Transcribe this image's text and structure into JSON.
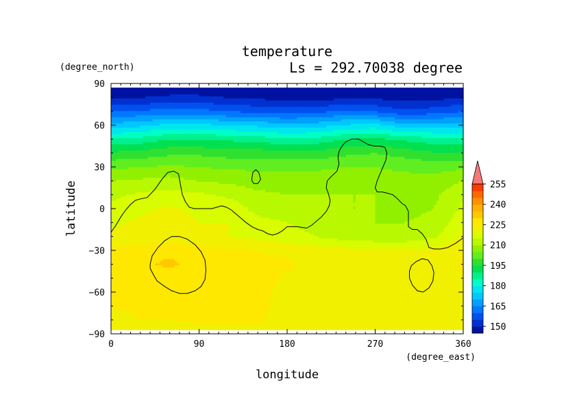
{
  "chart_data": {
    "type": "heatmap",
    "title": "temperature",
    "subtitle": "Ls = 292.70038 degree",
    "xlabel": "longitude",
    "ylabel": "latitude",
    "x_unit": "(degree_east)",
    "y_unit": "(degree_north)",
    "xlim": [
      0,
      360
    ],
    "ylim": [
      -90,
      90
    ],
    "x_ticks": [
      0,
      90,
      180,
      270,
      360
    ],
    "y_ticks": [
      90,
      60,
      30,
      0,
      -30,
      -60,
      -90
    ],
    "x_tick_labels": [
      "0",
      "90",
      "180",
      "270",
      "360"
    ],
    "y_tick_labels": [
      "90",
      "60",
      "30",
      "0",
      "−30",
      "−60",
      "−90"
    ],
    "colorbar": {
      "labels": [
        "150",
        "165",
        "180",
        "195",
        "210",
        "225",
        "240",
        "255"
      ],
      "values": [
        150,
        165,
        180,
        195,
        210,
        225,
        240,
        255
      ],
      "levels": [
        145,
        150,
        155,
        160,
        165,
        170,
        175,
        180,
        185,
        190,
        195,
        200,
        205,
        210,
        215,
        220,
        225,
        230,
        235,
        240,
        245,
        250,
        255,
        260
      ],
      "colors": [
        "#0012a0",
        "#0030d0",
        "#0050f0",
        "#0078ff",
        "#00a0ff",
        "#00c8ff",
        "#00e6f0",
        "#00ffc8",
        "#00f090",
        "#00e050",
        "#30e030",
        "#60ee20",
        "#90f000",
        "#b8f800",
        "#d8fc00",
        "#f0f000",
        "#ffe800",
        "#ffc800",
        "#ffb000",
        "#ff9000",
        "#ff6800",
        "#ff3c00",
        "#ff0000",
        "#f87878"
      ]
    },
    "fields": {
      "longitudes": [
        0,
        30,
        60,
        90,
        120,
        150,
        180,
        210,
        240,
        270,
        300,
        330,
        360
      ],
      "latitudes": [
        -87,
        -80,
        -70,
        -60,
        -50,
        -40,
        -30,
        -20,
        -10,
        0,
        10,
        20,
        30,
        40,
        50,
        60,
        70,
        80,
        87
      ],
      "temperature": [
        [
          222,
          223,
          223,
          223,
          223,
          223,
          222,
          222,
          221,
          221,
          221,
          221,
          222
        ],
        [
          223,
          225,
          225,
          226,
          226,
          226,
          222,
          222,
          221,
          221,
          221,
          221,
          223
        ],
        [
          225,
          226,
          227,
          227,
          227,
          227,
          222,
          222,
          221,
          221,
          221,
          221,
          225
        ],
        [
          225,
          226,
          227,
          227,
          227,
          227,
          223,
          221,
          221,
          221,
          221,
          221,
          225
        ],
        [
          225,
          226,
          227,
          227,
          227,
          227,
          224,
          221,
          221,
          221,
          221,
          221,
          225
        ],
        [
          226,
          229,
          231,
          228,
          227,
          226,
          226,
          223,
          221,
          221,
          221,
          221,
          226
        ],
        [
          225,
          228,
          229,
          227,
          226,
          225,
          224,
          223,
          222,
          221,
          221,
          222,
          225
        ],
        [
          221,
          222,
          222,
          222,
          220,
          219,
          217,
          215,
          213,
          212,
          212,
          214,
          221
        ],
        [
          219,
          221,
          222,
          220,
          220,
          217,
          215,
          213,
          211,
          210,
          210,
          211,
          219
        ],
        [
          216,
          219,
          221,
          219,
          219,
          213,
          212,
          211,
          210,
          210,
          209,
          210,
          216
        ],
        [
          214,
          216,
          217,
          216,
          214,
          211,
          210,
          210,
          210,
          210,
          209,
          209,
          214
        ],
        [
          210,
          211,
          212,
          210,
          209,
          208,
          208,
          208,
          208,
          207,
          207,
          207,
          210
        ],
        [
          204,
          205,
          206,
          205,
          204,
          204,
          204,
          204,
          205,
          205,
          204,
          203,
          204
        ],
        [
          196,
          197,
          199,
          199,
          198,
          198,
          197,
          197,
          199,
          200,
          198,
          196,
          196
        ],
        [
          186,
          187,
          190,
          190,
          189,
          188,
          186,
          187,
          190,
          191,
          189,
          187,
          186
        ],
        [
          172,
          174,
          177,
          177,
          175,
          174,
          172,
          173,
          176,
          177,
          172,
          172,
          172
        ],
        [
          160,
          161,
          162,
          162,
          160,
          159,
          158,
          159,
          161,
          160,
          156,
          158,
          160
        ],
        [
          150,
          150,
          151,
          151,
          150,
          149,
          148,
          148,
          149,
          149,
          148,
          148,
          150
        ],
        [
          146,
          146,
          147,
          147,
          146,
          146,
          145,
          145,
          146,
          146,
          145,
          145,
          146
        ]
      ]
    },
    "contours": [
      {
        "name": "main",
        "points": [
          [
            0,
            -17
          ],
          [
            5,
            -12
          ],
          [
            10,
            -6
          ],
          [
            15,
            -1
          ],
          [
            20,
            3
          ],
          [
            25,
            6
          ],
          [
            30,
            7
          ],
          [
            37,
            8
          ],
          [
            45,
            14
          ],
          [
            52,
            21
          ],
          [
            58,
            26
          ],
          [
            64,
            27
          ],
          [
            69,
            25
          ],
          [
            71,
            17
          ],
          [
            73,
            10
          ],
          [
            76,
            5
          ],
          [
            80,
            1
          ],
          [
            85,
            0
          ],
          [
            95,
            0
          ],
          [
            103,
            0
          ],
          [
            108,
            1
          ],
          [
            113,
            2
          ],
          [
            118,
            1
          ],
          [
            123,
            -1
          ],
          [
            128,
            -4
          ],
          [
            133,
            -7
          ],
          [
            138,
            -10
          ],
          [
            144,
            -13
          ],
          [
            150,
            -15
          ],
          [
            155,
            -16
          ],
          [
            160,
            -18
          ],
          [
            165,
            -19
          ],
          [
            170,
            -18
          ],
          [
            175,
            -16
          ],
          [
            180,
            -13
          ],
          [
            190,
            -13
          ],
          [
            200,
            -14
          ],
          [
            205,
            -12
          ],
          [
            210,
            -9
          ],
          [
            215,
            -6
          ],
          [
            220,
            -2
          ],
          [
            223,
            2
          ],
          [
            224,
            6
          ],
          [
            222,
            11
          ],
          [
            220,
            15
          ],
          [
            221,
            20
          ],
          [
            225,
            23
          ],
          [
            231,
            27
          ],
          [
            233,
            32
          ],
          [
            232,
            37
          ],
          [
            233,
            41
          ],
          [
            236,
            45
          ],
          [
            240,
            48
          ],
          [
            246,
            50
          ],
          [
            253,
            50
          ],
          [
            258,
            48
          ],
          [
            263,
            46
          ],
          [
            269,
            45
          ],
          [
            275,
            45
          ],
          [
            280,
            44
          ],
          [
            282,
            40
          ],
          [
            281,
            35
          ],
          [
            278,
            30
          ],
          [
            275,
            25
          ],
          [
            272,
            20
          ],
          [
            270,
            15
          ],
          [
            272,
            12
          ],
          [
            277,
            12
          ],
          [
            283,
            11
          ],
          [
            288,
            10
          ],
          [
            293,
            7
          ],
          [
            297,
            4
          ],
          [
            301,
            2
          ],
          [
            304,
            -2
          ],
          [
            304,
            -8
          ],
          [
            304,
            -13
          ],
          [
            308,
            -15
          ],
          [
            313,
            -15
          ],
          [
            318,
            -18
          ],
          [
            322,
            -22
          ],
          [
            325,
            -28
          ],
          [
            330,
            -29
          ],
          [
            337,
            -29
          ],
          [
            344,
            -28
          ],
          [
            352,
            -25
          ],
          [
            360,
            -21
          ]
        ]
      },
      {
        "name": "island-30N",
        "points": [
          [
            144,
            22
          ],
          [
            145,
            26
          ],
          [
            148,
            28
          ],
          [
            151,
            26
          ],
          [
            153,
            21
          ],
          [
            150,
            18
          ],
          [
            146,
            18
          ],
          [
            144,
            20
          ],
          [
            144,
            22
          ]
        ]
      },
      {
        "name": "warm-SW",
        "points": [
          [
            40,
            -40
          ],
          [
            42,
            -34
          ],
          [
            48,
            -28
          ],
          [
            55,
            -23
          ],
          [
            62,
            -20
          ],
          [
            70,
            -20
          ],
          [
            78,
            -22
          ],
          [
            86,
            -26
          ],
          [
            92,
            -31
          ],
          [
            96,
            -37
          ],
          [
            97,
            -44
          ],
          [
            96,
            -51
          ],
          [
            92,
            -56
          ],
          [
            86,
            -59
          ],
          [
            78,
            -61
          ],
          [
            70,
            -61
          ],
          [
            62,
            -59
          ],
          [
            55,
            -56
          ],
          [
            47,
            -52
          ],
          [
            43,
            -47
          ],
          [
            40,
            -43
          ],
          [
            40,
            -40
          ]
        ]
      },
      {
        "name": "cool-SE",
        "points": [
          [
            305,
            -45
          ],
          [
            307,
            -41
          ],
          [
            312,
            -38
          ],
          [
            318,
            -36
          ],
          [
            324,
            -37
          ],
          [
            328,
            -41
          ],
          [
            330,
            -46
          ],
          [
            329,
            -52
          ],
          [
            325,
            -57
          ],
          [
            319,
            -60
          ],
          [
            313,
            -59
          ],
          [
            308,
            -55
          ],
          [
            305,
            -50
          ],
          [
            305,
            -45
          ]
        ]
      }
    ]
  }
}
